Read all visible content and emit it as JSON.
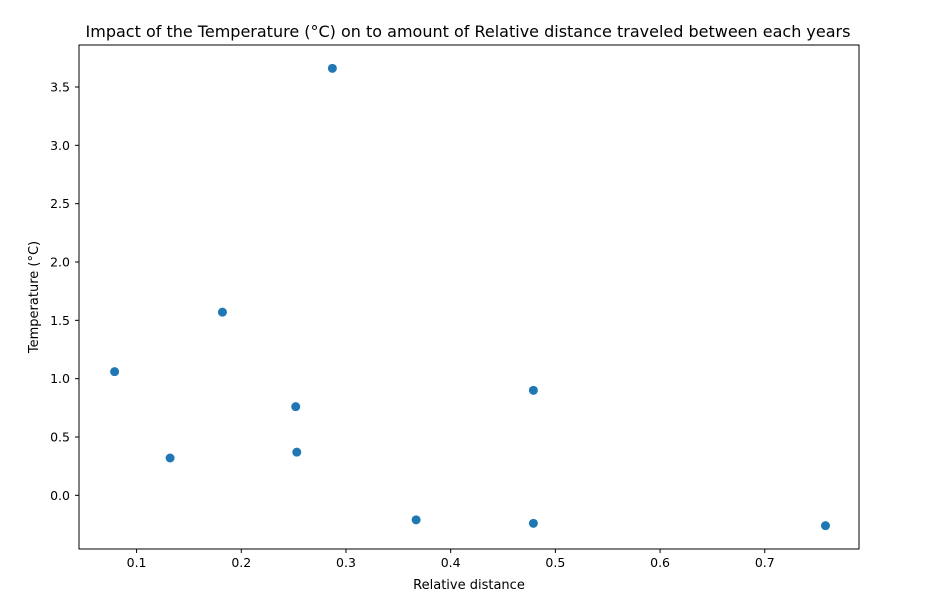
{
  "chart_data": {
    "type": "scatter",
    "title": "Impact of the Temperature (°C) on to amount of Relative distance traveled between each years",
    "xlabel": "Relative distance",
    "ylabel": "Temperature (°C)",
    "xlim": [
      0.045,
      0.79
    ],
    "ylim": [
      -0.46,
      3.86
    ],
    "xticks": [
      0.1,
      0.2,
      0.3,
      0.4,
      0.5,
      0.6,
      0.7
    ],
    "xtick_labels": [
      "0.1",
      "0.2",
      "0.3",
      "0.4",
      "0.5",
      "0.6",
      "0.7"
    ],
    "yticks": [
      0.0,
      0.5,
      1.0,
      1.5,
      2.0,
      2.5,
      3.0,
      3.5
    ],
    "ytick_labels": [
      "0.0",
      "0.5",
      "1.0",
      "1.5",
      "2.0",
      "2.5",
      "3.0",
      "3.5"
    ],
    "grid": false,
    "marker_color": "#1f77b4",
    "points": [
      {
        "x": 0.079,
        "y": 1.06
      },
      {
        "x": 0.132,
        "y": 0.32
      },
      {
        "x": 0.182,
        "y": 1.57
      },
      {
        "x": 0.252,
        "y": 0.76
      },
      {
        "x": 0.253,
        "y": 0.37
      },
      {
        "x": 0.287,
        "y": 3.66
      },
      {
        "x": 0.367,
        "y": -0.21
      },
      {
        "x": 0.479,
        "y": 0.9
      },
      {
        "x": 0.479,
        "y": -0.24
      },
      {
        "x": 0.758,
        "y": -0.26
      }
    ]
  }
}
